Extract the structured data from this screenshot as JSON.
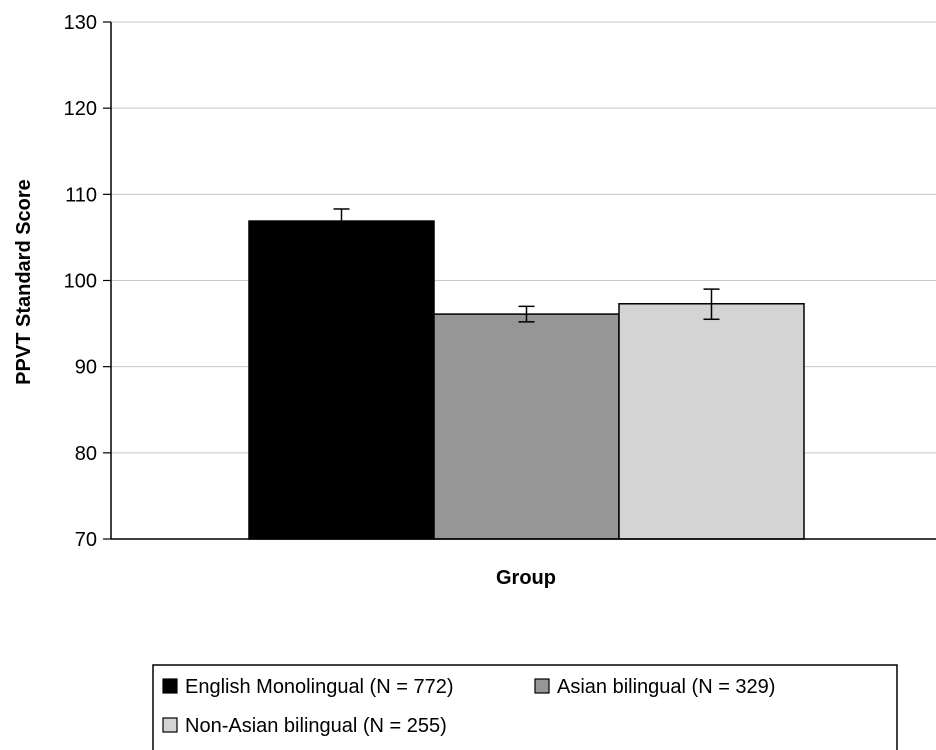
{
  "chart_data": {
    "type": "bar",
    "xlabel": "Group",
    "ylabel": "PPVT Standard Score",
    "ylim": [
      70,
      130
    ],
    "yticks": [
      70,
      80,
      90,
      100,
      110,
      120,
      130
    ],
    "grid": true,
    "legend_position": "bottom",
    "categories": [
      ""
    ],
    "series": [
      {
        "name": "English Monolingual (N = 772)",
        "values": [
          106.9
        ],
        "error_low": [
          106.2
        ],
        "error_high": [
          108.3
        ],
        "color": "#000000"
      },
      {
        "name": "Asian bilingual (N = 329)",
        "values": [
          96.1
        ],
        "error_low": [
          95.2
        ],
        "error_high": [
          97.0
        ],
        "color": "#969696"
      },
      {
        "name": "Non-Asian bilingual (N = 255)",
        "values": [
          97.3
        ],
        "error_low": [
          95.5
        ],
        "error_high": [
          99.0
        ],
        "color": "#d4d4d4"
      }
    ]
  }
}
